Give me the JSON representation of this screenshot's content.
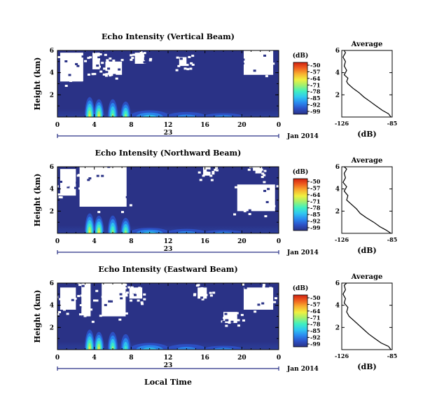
{
  "figure": {
    "xlabel": "Local Time"
  },
  "chart_data": [
    {
      "type": "heatmap",
      "title": "Echo Intensity (Vertical Beam)",
      "ylabel": "Height (km)",
      "x_ticks": [
        "0",
        "4",
        "8",
        "12",
        "16",
        "20",
        "0"
      ],
      "xlim": [
        0,
        24
      ],
      "y_ticks": [
        "6",
        "4",
        "2"
      ],
      "ylim": [
        0,
        6
      ],
      "date_axis": {
        "day": "23",
        "month_year": "Jan 2014"
      },
      "colorbar": {
        "unit": "(dB)",
        "ticks": [
          "-50",
          "-57",
          "-64",
          "-71",
          "-78",
          "-85",
          "-92",
          "-99"
        ],
        "range": [
          -99,
          -50
        ]
      },
      "colors": [
        "#2a3286",
        "#2c52c8",
        "#2a8af0",
        "#30c8f0",
        "#40f0c0",
        "#a0f070",
        "#f0f040",
        "#f8b030",
        "#f06020",
        "#d02010"
      ],
      "echo_layers": [
        {
          "x": 3.5,
          "height": 1.8,
          "intensity": 0.85
        },
        {
          "x": 4.5,
          "height": 1.6,
          "intensity": 0.9
        },
        {
          "x": 6.0,
          "height": 1.6,
          "intensity": 0.7
        },
        {
          "x": 7.4,
          "height": 1.4,
          "intensity": 0.65
        },
        {
          "x": 10,
          "height": 0.6,
          "intensity": 0.45
        },
        {
          "x": 14,
          "height": 0.45,
          "intensity": 0.35
        },
        {
          "x": 18,
          "height": 0.35,
          "intensity": 0.3
        }
      ],
      "no_data_regions": [
        {
          "x0": 0.3,
          "x1": 2.8,
          "y0": 3.2,
          "y1": 5.8
        },
        {
          "x0": 3.8,
          "x1": 4.6,
          "y0": 4.3,
          "y1": 5.8
        },
        {
          "x0": 5.2,
          "x1": 7.0,
          "y0": 3.8,
          "y1": 5.0
        },
        {
          "x0": 8.4,
          "x1": 9.4,
          "y0": 4.8,
          "y1": 5.8
        },
        {
          "x0": 13.2,
          "x1": 14.0,
          "y0": 4.6,
          "y1": 5.4
        },
        {
          "x0": 20.2,
          "x1": 23.4,
          "y0": 3.8,
          "y1": 6.0
        }
      ],
      "profile": {
        "title": "Average",
        "xlabel": "(dB)",
        "x_ticks": [
          "-126",
          "-85"
        ],
        "xlim": [
          -126,
          -85
        ],
        "y_ticks": [
          "6",
          "4",
          "2"
        ],
        "ylim": [
          0,
          6
        ],
        "values": [
          [
            0.0,
            -86
          ],
          [
            0.3,
            -88
          ],
          [
            0.6,
            -93
          ],
          [
            1.0,
            -98
          ],
          [
            1.4,
            -103
          ],
          [
            1.8,
            -108
          ],
          [
            2.2,
            -112
          ],
          [
            2.6,
            -117
          ],
          [
            3.0,
            -121
          ],
          [
            3.2,
            -122
          ],
          [
            3.5,
            -121
          ],
          [
            3.8,
            -124
          ],
          [
            4.2,
            -122
          ],
          [
            4.6,
            -124
          ],
          [
            5.0,
            -123
          ],
          [
            5.4,
            -125
          ],
          [
            5.8,
            -123
          ],
          [
            6.0,
            -124
          ]
        ]
      }
    },
    {
      "type": "heatmap",
      "title": "Echo Intensity (Northward Beam)",
      "ylabel": "Height (km)",
      "x_ticks": [
        "0",
        "4",
        "8",
        "12",
        "16",
        "20",
        "0"
      ],
      "xlim": [
        0,
        24
      ],
      "y_ticks": [
        "6",
        "4",
        "2"
      ],
      "ylim": [
        0,
        6
      ],
      "date_axis": {
        "day": "23",
        "month_year": "Jan 2014"
      },
      "colorbar": {
        "unit": "(dB)",
        "ticks": [
          "-50",
          "-57",
          "-64",
          "-71",
          "-78",
          "-85",
          "-92",
          "-99"
        ],
        "range": [
          -99,
          -50
        ]
      },
      "colors": [
        "#2a3286",
        "#2c52c8",
        "#2a8af0",
        "#30c8f0",
        "#40f0c0",
        "#a0f070",
        "#f0f040",
        "#f8b030",
        "#f06020",
        "#d02010"
      ],
      "echo_layers": [
        {
          "x": 3.5,
          "height": 1.8,
          "intensity": 0.8
        },
        {
          "x": 4.5,
          "height": 1.6,
          "intensity": 0.9
        },
        {
          "x": 6.0,
          "height": 1.6,
          "intensity": 0.7
        },
        {
          "x": 7.4,
          "height": 1.4,
          "intensity": 0.65
        },
        {
          "x": 10,
          "height": 0.5,
          "intensity": 0.4
        },
        {
          "x": 14,
          "height": 0.4,
          "intensity": 0.3
        },
        {
          "x": 18,
          "height": 0.3,
          "intensity": 0.25
        }
      ],
      "no_data_regions": [
        {
          "x0": 0.3,
          "x1": 2.0,
          "y0": 3.4,
          "y1": 5.8
        },
        {
          "x0": 2.4,
          "x1": 7.5,
          "y0": 2.4,
          "y1": 6.0
        },
        {
          "x0": 15.8,
          "x1": 16.6,
          "y0": 5.2,
          "y1": 6.0
        },
        {
          "x0": 19.5,
          "x1": 23.6,
          "y0": 2.0,
          "y1": 4.4
        },
        {
          "x0": 21.2,
          "x1": 22.2,
          "y0": 5.4,
          "y1": 6.0
        }
      ],
      "profile": {
        "title": "Average",
        "xlabel": "(dB)",
        "x_ticks": [
          "-126",
          "-85"
        ],
        "xlim": [
          -126,
          -85
        ],
        "y_ticks": [
          "6",
          "4",
          "2"
        ],
        "ylim": [
          0,
          6
        ],
        "values": [
          [
            0.0,
            -86
          ],
          [
            0.3,
            -90
          ],
          [
            0.6,
            -95
          ],
          [
            1.0,
            -100
          ],
          [
            1.4,
            -106
          ],
          [
            1.8,
            -111
          ],
          [
            2.2,
            -114
          ],
          [
            2.6,
            -118
          ],
          [
            3.0,
            -122
          ],
          [
            3.4,
            -121
          ],
          [
            3.8,
            -124
          ],
          [
            4.2,
            -122
          ],
          [
            4.6,
            -125
          ],
          [
            5.0,
            -123
          ],
          [
            5.4,
            -124
          ],
          [
            5.8,
            -122
          ],
          [
            6.0,
            -124
          ]
        ]
      }
    },
    {
      "type": "heatmap",
      "title": "Echo Intensity (Eastward Beam)",
      "ylabel": "Height (km)",
      "x_ticks": [
        "0",
        "4",
        "8",
        "12",
        "16",
        "20",
        "0"
      ],
      "xlim": [
        0,
        24
      ],
      "y_ticks": [
        "6",
        "4",
        "2"
      ],
      "ylim": [
        0,
        6
      ],
      "date_axis": {
        "day": "23",
        "month_year": "Jan 2014"
      },
      "colorbar": {
        "unit": "(dB)",
        "ticks": [
          "-50",
          "-57",
          "-64",
          "-71",
          "-78",
          "-85",
          "-92",
          "-99"
        ],
        "range": [
          -99,
          -50
        ]
      },
      "colors": [
        "#2a3286",
        "#2c52c8",
        "#2a8af0",
        "#30c8f0",
        "#40f0c0",
        "#a0f070",
        "#f0f040",
        "#f8b030",
        "#f06020",
        "#d02010"
      ],
      "echo_layers": [
        {
          "x": 3.5,
          "height": 1.8,
          "intensity": 0.8
        },
        {
          "x": 4.5,
          "height": 1.6,
          "intensity": 0.9
        },
        {
          "x": 6.0,
          "height": 1.6,
          "intensity": 0.65
        },
        {
          "x": 7.4,
          "height": 1.4,
          "intensity": 0.6
        },
        {
          "x": 10,
          "height": 0.6,
          "intensity": 0.45
        },
        {
          "x": 14,
          "height": 0.5,
          "intensity": 0.35
        },
        {
          "x": 18,
          "height": 0.35,
          "intensity": 0.3
        }
      ],
      "no_data_regions": [
        {
          "x0": 0.3,
          "x1": 2.0,
          "y0": 3.6,
          "y1": 5.6
        },
        {
          "x0": 2.6,
          "x1": 3.6,
          "y0": 3.0,
          "y1": 6.0
        },
        {
          "x0": 4.8,
          "x1": 7.4,
          "y0": 3.0,
          "y1": 6.0
        },
        {
          "x0": 7.8,
          "x1": 9.2,
          "y0": 4.6,
          "y1": 5.6
        },
        {
          "x0": 15.2,
          "x1": 16.2,
          "y0": 4.6,
          "y1": 5.6
        },
        {
          "x0": 18.0,
          "x1": 19.5,
          "y0": 2.4,
          "y1": 3.4
        },
        {
          "x0": 20.2,
          "x1": 23.4,
          "y0": 3.6,
          "y1": 5.6
        }
      ],
      "profile": {
        "title": "Average",
        "xlabel": "(dB)",
        "x_ticks": [
          "-126",
          "-85"
        ],
        "xlim": [
          -126,
          -85
        ],
        "y_ticks": [
          "6",
          "4",
          "2"
        ],
        "ylim": [
          0,
          6
        ],
        "values": [
          [
            0.0,
            -86
          ],
          [
            0.3,
            -88
          ],
          [
            0.6,
            -94
          ],
          [
            1.0,
            -99
          ],
          [
            1.4,
            -104
          ],
          [
            1.8,
            -108
          ],
          [
            2.2,
            -112
          ],
          [
            2.6,
            -116
          ],
          [
            3.0,
            -120
          ],
          [
            3.4,
            -122
          ],
          [
            3.8,
            -121
          ],
          [
            4.2,
            -124
          ],
          [
            4.6,
            -123
          ],
          [
            5.0,
            -125
          ],
          [
            5.4,
            -123
          ],
          [
            5.8,
            -124
          ],
          [
            6.0,
            -122
          ]
        ]
      }
    }
  ]
}
